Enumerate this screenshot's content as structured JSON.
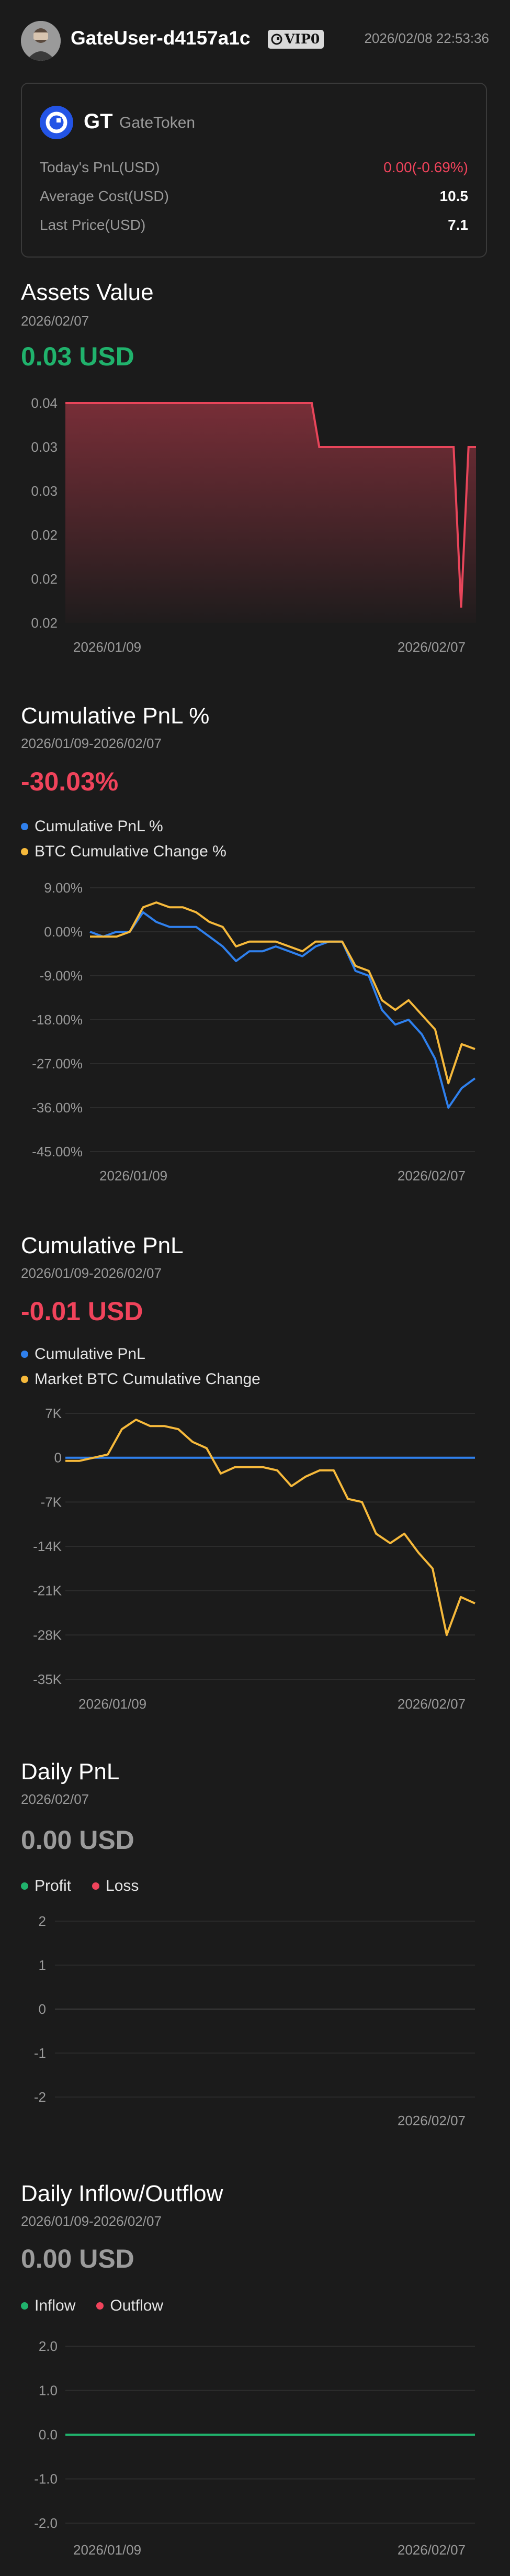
{
  "header": {
    "username": "GateUser-d4157a1c",
    "vip_label": "VIP0",
    "timestamp": "2026/02/08 22:53:36",
    "avatar_icon": "avatar-icon"
  },
  "token": {
    "symbol": "GT",
    "name": "GateToken",
    "rows": [
      {
        "label": "Today's PnL(USD)",
        "value": "0.00(-0.69%)"
      },
      {
        "label": "Average Cost(USD)",
        "value": "10.5"
      },
      {
        "label": "Last Price(USD)",
        "value": "7.1"
      }
    ]
  },
  "assets": {
    "title": "Assets Value",
    "date": "2026/02/07",
    "value": "0.03 USD"
  },
  "cum_pnl_pct": {
    "title": "Cumulative PnL %",
    "date_range": "2026/01/09-2026/02/07",
    "value": "-30.03%",
    "legend": [
      "Cumulative PnL %",
      "BTC Cumulative Change %"
    ]
  },
  "cum_pnl": {
    "title": "Cumulative PnL",
    "date_range": "2026/01/09-2026/02/07",
    "value": "-0.01 USD",
    "legend": [
      "Cumulative PnL",
      "Market BTC Cumulative Change"
    ]
  },
  "daily_pnl": {
    "title": "Daily PnL",
    "date": "2026/02/07",
    "value": "0.00 USD",
    "legend": [
      "Profit",
      "Loss"
    ]
  },
  "inflow": {
    "title": "Daily Inflow/Outflow",
    "date_range": "2026/01/09-2026/02/07",
    "value": "0.00 USD",
    "legend": [
      "Inflow",
      "Outflow"
    ]
  },
  "colors": {
    "green": "#20b26c",
    "red": "#f0435b",
    "blue": "#2f80ed",
    "yellow": "#f6b93b",
    "assets_line": "#e8455a"
  },
  "chart_data": [
    {
      "type": "area",
      "y_tick_labels": [
        "0.04",
        "0.03",
        "0.03",
        "0.02",
        "0.02",
        "0.02"
      ],
      "x_tick_labels": [
        "2026/01/09",
        "2026/02/07"
      ],
      "series": [
        {
          "values": [
            0.04,
            0.04,
            0.04,
            0.04,
            0.04,
            0.04,
            0.04,
            0.04,
            0.04,
            0.04,
            0.04,
            0.04,
            0.04,
            0.04,
            0.04,
            0.04,
            0.04,
            0.04,
            0.04,
            0.04,
            0.04,
            0.04,
            0.04,
            0.04,
            0.04,
            0.04,
            0.04,
            0.04,
            0.04,
            0.04,
            0.04,
            0.04,
            0.04,
            0.04,
            0.0357,
            0.0357,
            0.0357,
            0.0357,
            0.0357,
            0.0357,
            0.0357,
            0.0357,
            0.0357,
            0.0357,
            0.0357,
            0.0357,
            0.0357,
            0.0357,
            0.0357,
            0.0357,
            0.0357,
            0.0357,
            0.0357,
            0.02,
            0.0357,
            0.0357
          ]
        }
      ]
    },
    {
      "type": "line",
      "y_tick_labels": [
        "9.00%",
        "0.00%",
        "-9.00%",
        "-18.00%",
        "-27.00%",
        "-36.00%",
        "-45.00%"
      ],
      "ylim": [
        -45,
        9
      ],
      "x_tick_labels": [
        "2026/01/09",
        "2026/02/07"
      ],
      "series": [
        {
          "name": "Cumulative PnL %",
          "values": [
            0,
            -1,
            0,
            0,
            4,
            2,
            1,
            1,
            1,
            -1,
            -3,
            -6,
            -4,
            -4,
            -3,
            -4,
            -5,
            -3,
            -2,
            -2,
            -8,
            -9,
            -16,
            -19,
            -18,
            -21,
            -26,
            -36,
            -32,
            -30
          ]
        },
        {
          "name": "BTC Cumulative Change %",
          "values": [
            -1,
            -1,
            -1,
            0,
            5,
            6,
            5,
            5,
            4,
            2,
            1,
            -3,
            -2,
            -2,
            -2,
            -3,
            -4,
            -2,
            -2,
            -2,
            -7,
            -8,
            -14,
            -16,
            -14,
            -17,
            -20,
            -31,
            -23,
            -24
          ]
        }
      ]
    },
    {
      "type": "line",
      "y_tick_labels": [
        "7K",
        "0",
        "-7K",
        "-14K",
        "-21K",
        "-28K",
        "-35K"
      ],
      "ylim": [
        -35000,
        7000
      ],
      "x_tick_labels": [
        "2026/01/09",
        "2026/02/07"
      ],
      "series": [
        {
          "name": "Cumulative PnL",
          "values": [
            0,
            0,
            0,
            0,
            0,
            0,
            0,
            0,
            0,
            0,
            0,
            0,
            0,
            0,
            0,
            0,
            0,
            0,
            0,
            0,
            0,
            0,
            0,
            0,
            0,
            0,
            0,
            0,
            0,
            0
          ]
        },
        {
          "name": "Market BTC Cumulative Change",
          "values": [
            -500,
            -500,
            0,
            500,
            4500,
            6000,
            5000,
            5000,
            4500,
            2500,
            1500,
            -2500,
            -1500,
            -1500,
            -1500,
            -2000,
            -4500,
            -3000,
            -2000,
            -2000,
            -6500,
            -7000,
            -12000,
            -13500,
            -12000,
            -15000,
            -17500,
            -28000,
            -22000,
            -23000
          ]
        }
      ]
    },
    {
      "type": "bar",
      "y_tick_labels": [
        "2",
        "1",
        "0",
        "-1",
        "-2"
      ],
      "ylim": [
        -2,
        2
      ],
      "x_tick_labels": [
        "2026/02/07"
      ],
      "series": [
        {
          "name": "Profit",
          "values": []
        },
        {
          "name": "Loss",
          "values": []
        }
      ]
    },
    {
      "type": "line",
      "y_tick_labels": [
        "2.0",
        "1.0",
        "0.0",
        "-1.0",
        "-2.0"
      ],
      "ylim": [
        -2,
        2
      ],
      "x_tick_labels": [
        "2026/01/09",
        "2026/02/07"
      ],
      "series": [
        {
          "name": "Inflow",
          "values": [
            0,
            0,
            0,
            0,
            0,
            0,
            0,
            0,
            0,
            0,
            0,
            0,
            0,
            0,
            0,
            0,
            0,
            0,
            0,
            0,
            0,
            0,
            0,
            0,
            0,
            0,
            0,
            0,
            0,
            0
          ]
        }
      ]
    }
  ]
}
